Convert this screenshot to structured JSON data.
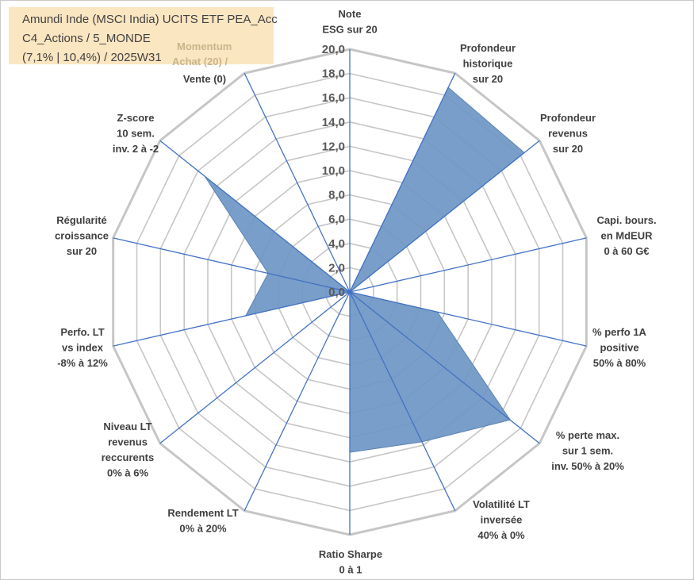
{
  "chart_data": {
    "type": "radar",
    "title_lines": [
      "Amundi Inde (MSCI India) UCITS ETF PEA_Acc",
      "C4_Actions / 5_MONDE",
      "(7,1% | 10,4%) / 2025W31"
    ],
    "rlim": [
      0,
      20
    ],
    "r_ticks": [
      "0,0",
      "2,0",
      "4,0",
      "6,0",
      "8,0",
      "10,0",
      "12,0",
      "14,0",
      "16,0",
      "18,0",
      "20,0"
    ],
    "grid": true,
    "axes": [
      {
        "label": [
          "Note",
          "ESG sur 20"
        ]
      },
      {
        "label": [
          "Profondeur",
          "historique",
          "sur 20"
        ]
      },
      {
        "label": [
          "Profondeur",
          "revenus",
          "sur 20"
        ]
      },
      {
        "label": [
          "Capi. bours.",
          "en MdEUR",
          "0 à 60 G€"
        ]
      },
      {
        "label": [
          "% perfo 1A",
          "positive",
          "50% à 80%"
        ]
      },
      {
        "label": [
          "% perte max.",
          "sur 1 sem.",
          "inv. 50% à 20%"
        ]
      },
      {
        "label": [
          "Volatilité LT",
          "inversée",
          "40% à 0%"
        ]
      },
      {
        "label": [
          "Ratio Sharpe",
          "0 à 1"
        ]
      },
      {
        "label": [
          "Rendement LT",
          "0% à 20%"
        ]
      },
      {
        "label": [
          "Niveau LT",
          "revenus",
          "reccurents",
          "0% à 6%"
        ]
      },
      {
        "label": [
          "Perfo. LT",
          "vs index",
          "-8% à 12%"
        ]
      },
      {
        "label": [
          "Régularité",
          "croissance",
          "sur 20"
        ]
      },
      {
        "label": [
          "Z-score",
          "10 sem.",
          "inv. 2 à -2"
        ]
      },
      {
        "label": [
          "Momentum",
          "Achat (20) /",
          "Vente (0)"
        ]
      }
    ],
    "series": [
      {
        "values": [
          0,
          18.7,
          18.4,
          0,
          7.4,
          16.9,
          13.7,
          13.2,
          0,
          0,
          8.8,
          6.9,
          15.3,
          0
        ]
      }
    ],
    "colors": {
      "fill": "#6e96c4",
      "stroke": "#5b82b4",
      "grid": "#c6c6c6",
      "spoke": "#4472c4",
      "momentum": "#c9b48a"
    }
  }
}
